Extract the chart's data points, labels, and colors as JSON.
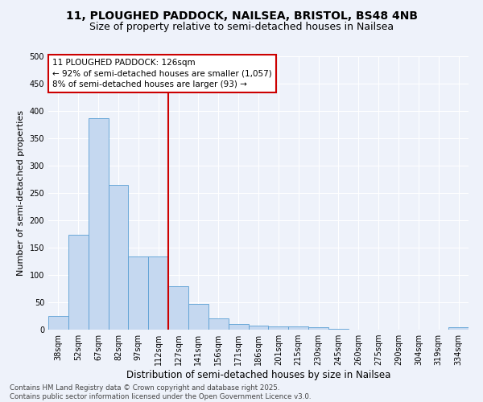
{
  "title_line1": "11, PLOUGHED PADDOCK, NAILSEA, BRISTOL, BS48 4NB",
  "title_line2": "Size of property relative to semi-detached houses in Nailsea",
  "xlabel": "Distribution of semi-detached houses by size in Nailsea",
  "ylabel": "Number of semi-detached properties",
  "footnote1": "Contains HM Land Registry data © Crown copyright and database right 2025.",
  "footnote2": "Contains public sector information licensed under the Open Government Licence v3.0.",
  "categories": [
    "38sqm",
    "52sqm",
    "67sqm",
    "82sqm",
    "97sqm",
    "112sqm",
    "127sqm",
    "141sqm",
    "156sqm",
    "171sqm",
    "186sqm",
    "201sqm",
    "215sqm",
    "230sqm",
    "245sqm",
    "260sqm",
    "275sqm",
    "290sqm",
    "304sqm",
    "319sqm",
    "334sqm"
  ],
  "values": [
    25,
    173,
    387,
    265,
    134,
    134,
    80,
    47,
    20,
    11,
    7,
    6,
    6,
    5,
    2,
    0,
    0,
    0,
    0,
    0,
    4
  ],
  "bar_color": "#c5d8f0",
  "bar_edge_color": "#5a9fd4",
  "vline_color": "#cc0000",
  "vline_x": 6.0,
  "annotation_line1": "11 PLOUGHED PADDOCK: 126sqm",
  "annotation_line2": "← 92% of semi-detached houses are smaller (1,057)",
  "annotation_line3": "8% of semi-detached houses are larger (93) →",
  "annotation_box_color": "#cc0000",
  "annotation_fontsize": 7.5,
  "title_fontsize1": 10,
  "title_fontsize2": 9,
  "ylabel_fontsize": 8,
  "xlabel_fontsize": 8.5,
  "tick_fontsize": 7,
  "background_color": "#eef2fa",
  "grid_color": "#ffffff",
  "ylim": [
    0,
    500
  ],
  "yticks": [
    0,
    50,
    100,
    150,
    200,
    250,
    300,
    350,
    400,
    450,
    500
  ]
}
